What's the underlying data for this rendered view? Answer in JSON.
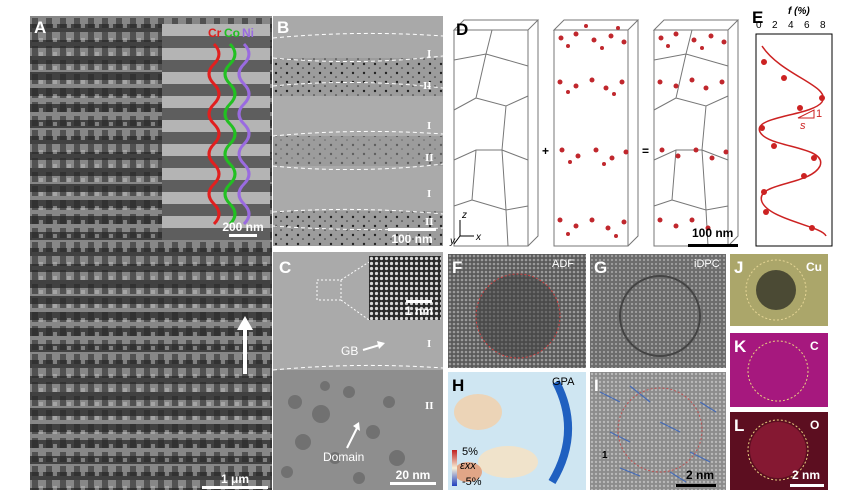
{
  "panels": {
    "A": {
      "label": "A",
      "scale": "1 μm",
      "inset_scale": "200 nm",
      "columns": [
        "Cr",
        "Co",
        "Ni"
      ],
      "colors": {
        "Cr": "#e0201f",
        "Co": "#22c022",
        "Ni": "#9a6be0"
      }
    },
    "B": {
      "label": "B",
      "scale": "100 nm",
      "layers": [
        "I",
        "II",
        "I",
        "II",
        "I",
        "II"
      ]
    },
    "C": {
      "label": "C",
      "scale": "20 nm",
      "inset_scale": "1 nm",
      "gb": "GB",
      "domain": "Domain",
      "region_top": "I",
      "region_bottom": "II"
    },
    "D": {
      "label": "D",
      "plus": "+",
      "equals": "=",
      "scale": "100 nm",
      "axis_z": "z",
      "axis_y": "y",
      "axis_x": "x"
    },
    "E": {
      "label": "E",
      "axis_title": "f (%)",
      "ticks": [
        "0",
        "2",
        "4",
        "6",
        "8"
      ],
      "slope_s": "s",
      "slope_1": "1",
      "color": "#cc2222"
    },
    "F": {
      "label": "F",
      "mode": "ADF"
    },
    "G": {
      "label": "G",
      "mode": "iDPC"
    },
    "H": {
      "label": "H",
      "mode": "GPA",
      "cb_max": "5%",
      "cb_min": "-5%",
      "strain": "εxx"
    },
    "I": {
      "label": "I",
      "scale": "2 nm",
      "mark": "1"
    },
    "J": {
      "label": "J",
      "element": "Cu"
    },
    "K": {
      "label": "K",
      "element": "C"
    },
    "L": {
      "label": "L",
      "element": "O",
      "scale": "2 nm"
    }
  }
}
